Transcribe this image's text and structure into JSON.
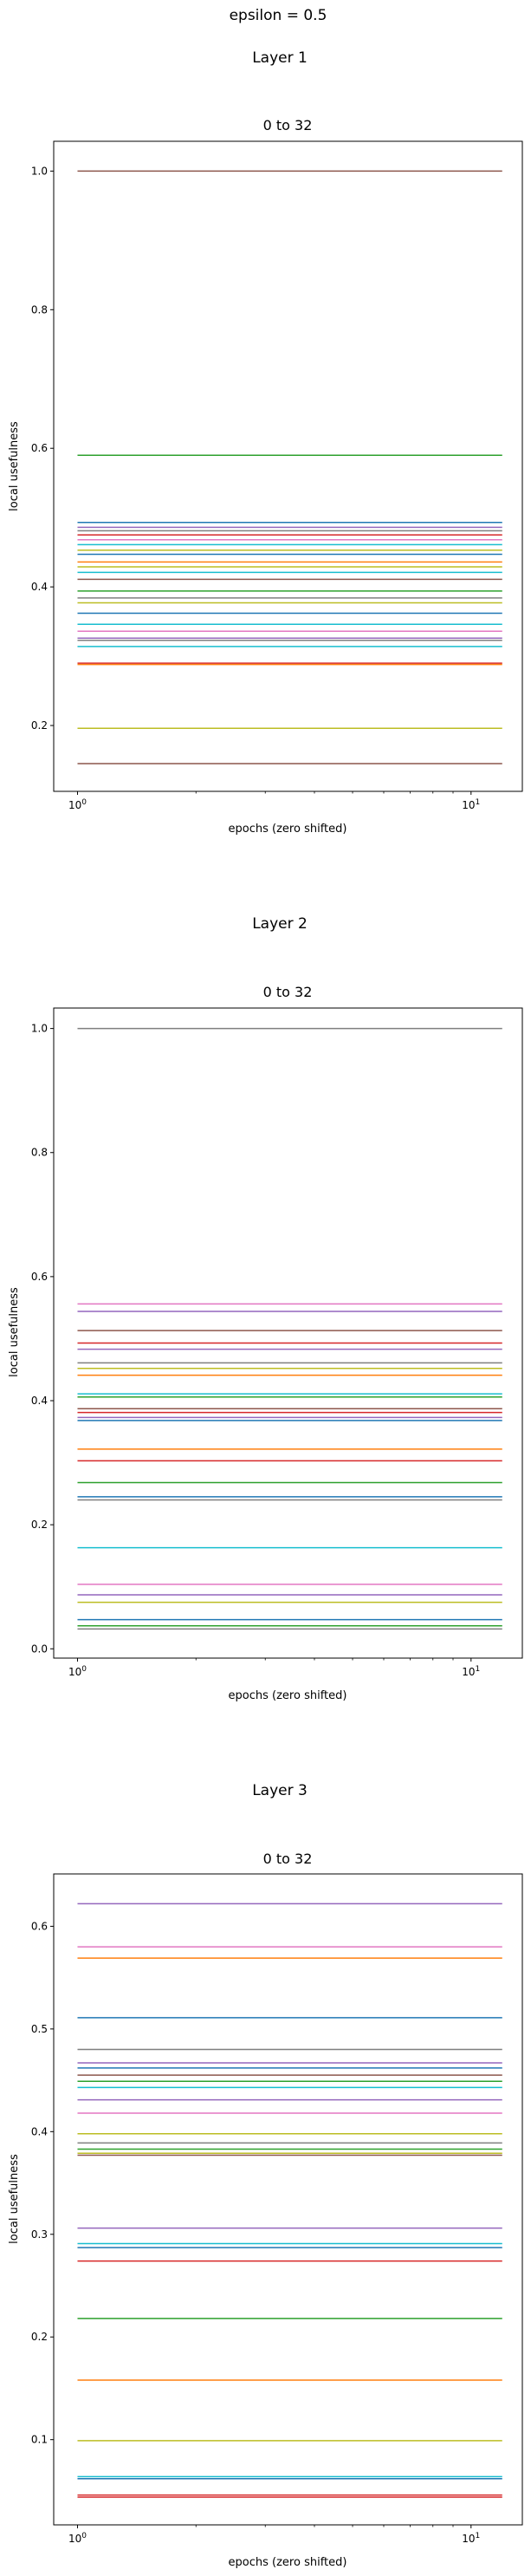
{
  "suptitle": "epsilon = 0.5",
  "chart_data": [
    {
      "type": "line",
      "layer_label": "Layer 1",
      "title": "0 to 32",
      "xlabel": "epochs (zero shifted)",
      "ylabel": "local usefulness",
      "xscale": "log",
      "xlim": [
        0.87,
        13.5
      ],
      "ylim": [
        0.105,
        1.043
      ],
      "x_ticks": [
        {
          "value": 1,
          "label": "10^0"
        },
        {
          "value": 10,
          "label": "10^1"
        }
      ],
      "y_ticks": [
        {
          "value": 0.2,
          "label": "0.2"
        },
        {
          "value": 0.4,
          "label": "0.4"
        },
        {
          "value": 0.6,
          "label": "0.6"
        },
        {
          "value": 0.8,
          "label": "0.8"
        },
        {
          "value": 1.0,
          "label": "1.0"
        }
      ],
      "x_range": [
        1,
        12
      ],
      "series": [
        {
          "color": "#8c564b",
          "values": [
            1.0,
            1.0
          ]
        },
        {
          "color": "#2ca02c",
          "values": [
            0.59,
            0.59
          ]
        },
        {
          "color": "#1f77b4",
          "values": [
            0.493,
            0.493
          ]
        },
        {
          "color": "#9467bd",
          "values": [
            0.486,
            0.486
          ]
        },
        {
          "color": "#7f7f7f",
          "values": [
            0.481,
            0.481
          ]
        },
        {
          "color": "#d62728",
          "values": [
            0.475,
            0.475
          ]
        },
        {
          "color": "#e377c2",
          "values": [
            0.468,
            0.468
          ]
        },
        {
          "color": "#17becf",
          "values": [
            0.461,
            0.461
          ]
        },
        {
          "color": "#bcbd22",
          "values": [
            0.453,
            0.453
          ]
        },
        {
          "color": "#1f77b4",
          "values": [
            0.447,
            0.447
          ]
        },
        {
          "color": "#ff7f0e",
          "values": [
            0.436,
            0.436
          ]
        },
        {
          "color": "#bcbd22",
          "values": [
            0.429,
            0.429
          ]
        },
        {
          "color": "#17becf",
          "values": [
            0.421,
            0.421
          ]
        },
        {
          "color": "#8c564b",
          "values": [
            0.411,
            0.411
          ]
        },
        {
          "color": "#2ca02c",
          "values": [
            0.394,
            0.394
          ]
        },
        {
          "color": "#7f7f7f",
          "values": [
            0.384,
            0.384
          ]
        },
        {
          "color": "#bcbd22",
          "values": [
            0.377,
            0.377
          ]
        },
        {
          "color": "#1f77b4",
          "values": [
            0.362,
            0.362
          ]
        },
        {
          "color": "#17becf",
          "values": [
            0.346,
            0.346
          ]
        },
        {
          "color": "#e377c2",
          "values": [
            0.336,
            0.336
          ]
        },
        {
          "color": "#9467bd",
          "values": [
            0.326,
            0.326
          ]
        },
        {
          "color": "#7f7f7f",
          "values": [
            0.323,
            0.323
          ]
        },
        {
          "color": "#17becf",
          "values": [
            0.314,
            0.314
          ]
        },
        {
          "color": "#d62728",
          "values": [
            0.29,
            0.29
          ]
        },
        {
          "color": "#ff7f0e",
          "values": [
            0.288,
            0.288
          ]
        },
        {
          "color": "#bcbd22",
          "values": [
            0.196,
            0.196
          ]
        },
        {
          "color": "#8c564b",
          "values": [
            0.145,
            0.145
          ]
        }
      ]
    },
    {
      "type": "line",
      "layer_label": "Layer 2",
      "title": "0 to 32",
      "xlabel": "epochs (zero shifted)",
      "ylabel": "local usefulness",
      "xscale": "log",
      "xlim": [
        0.87,
        13.5
      ],
      "ylim": [
        -0.015,
        1.033
      ],
      "x_ticks": [
        {
          "value": 1,
          "label": "10^0"
        },
        {
          "value": 10,
          "label": "10^1"
        }
      ],
      "y_ticks": [
        {
          "value": 0.0,
          "label": "0.0"
        },
        {
          "value": 0.2,
          "label": "0.2"
        },
        {
          "value": 0.4,
          "label": "0.4"
        },
        {
          "value": 0.6,
          "label": "0.6"
        },
        {
          "value": 0.8,
          "label": "0.8"
        },
        {
          "value": 1.0,
          "label": "1.0"
        }
      ],
      "x_range": [
        1,
        12
      ],
      "series": [
        {
          "color": "#7f7f7f",
          "values": [
            1.0,
            1.0
          ]
        },
        {
          "color": "#e377c2",
          "values": [
            0.556,
            0.556
          ]
        },
        {
          "color": "#9467bd",
          "values": [
            0.544,
            0.544
          ]
        },
        {
          "color": "#8c564b",
          "values": [
            0.513,
            0.513
          ]
        },
        {
          "color": "#d62728",
          "values": [
            0.493,
            0.493
          ]
        },
        {
          "color": "#9467bd",
          "values": [
            0.483,
            0.483
          ]
        },
        {
          "color": "#7f7f7f",
          "values": [
            0.461,
            0.461
          ]
        },
        {
          "color": "#bcbd22",
          "values": [
            0.452,
            0.452
          ]
        },
        {
          "color": "#ff7f0e",
          "values": [
            0.441,
            0.441
          ]
        },
        {
          "color": "#17becf",
          "values": [
            0.411,
            0.411
          ]
        },
        {
          "color": "#2ca02c",
          "values": [
            0.406,
            0.406
          ]
        },
        {
          "color": "#8c564b",
          "values": [
            0.387,
            0.387
          ]
        },
        {
          "color": "#d62728",
          "values": [
            0.381,
            0.381
          ]
        },
        {
          "color": "#9467bd",
          "values": [
            0.373,
            0.373
          ]
        },
        {
          "color": "#1f77b4",
          "values": [
            0.368,
            0.368
          ]
        },
        {
          "color": "#ff7f0e",
          "values": [
            0.322,
            0.322
          ]
        },
        {
          "color": "#d62728",
          "values": [
            0.303,
            0.303
          ]
        },
        {
          "color": "#2ca02c",
          "values": [
            0.268,
            0.268
          ]
        },
        {
          "color": "#1f77b4",
          "values": [
            0.245,
            0.245
          ]
        },
        {
          "color": "#7f7f7f",
          "values": [
            0.24,
            0.24
          ]
        },
        {
          "color": "#17becf",
          "values": [
            0.163,
            0.163
          ]
        },
        {
          "color": "#e377c2",
          "values": [
            0.104,
            0.104
          ]
        },
        {
          "color": "#9467bd",
          "values": [
            0.087,
            0.087
          ]
        },
        {
          "color": "#bcbd22",
          "values": [
            0.075,
            0.075
          ]
        },
        {
          "color": "#1f77b4",
          "values": [
            0.047,
            0.047
          ]
        },
        {
          "color": "#2ca02c",
          "values": [
            0.037,
            0.037
          ]
        },
        {
          "color": "#7f7f7f",
          "values": [
            0.032,
            0.032
          ]
        }
      ]
    },
    {
      "type": "line",
      "layer_label": "Layer 3",
      "title": "0 to 32",
      "xlabel": "epochs (zero shifted)",
      "ylabel": "local usefulness",
      "xscale": "log",
      "xlim": [
        0.87,
        13.5
      ],
      "ylim": [
        0.017,
        0.651
      ],
      "x_ticks": [
        {
          "value": 1,
          "label": "10^0"
        },
        {
          "value": 10,
          "label": "10^1"
        }
      ],
      "y_ticks": [
        {
          "value": 0.1,
          "label": "0.1"
        },
        {
          "value": 0.2,
          "label": "0.2"
        },
        {
          "value": 0.3,
          "label": "0.3"
        },
        {
          "value": 0.4,
          "label": "0.4"
        },
        {
          "value": 0.5,
          "label": "0.5"
        },
        {
          "value": 0.6,
          "label": "0.6"
        }
      ],
      "x_range": [
        1,
        12
      ],
      "series": [
        {
          "color": "#9467bd",
          "values": [
            0.622,
            0.622
          ]
        },
        {
          "color": "#e377c2",
          "values": [
            0.58,
            0.58
          ]
        },
        {
          "color": "#ff7f0e",
          "values": [
            0.569,
            0.569
          ]
        },
        {
          "color": "#1f77b4",
          "values": [
            0.511,
            0.511
          ]
        },
        {
          "color": "#7f7f7f",
          "values": [
            0.48,
            0.48
          ]
        },
        {
          "color": "#9467bd",
          "values": [
            0.467,
            0.467
          ]
        },
        {
          "color": "#1f77b4",
          "values": [
            0.462,
            0.462
          ]
        },
        {
          "color": "#8c564b",
          "values": [
            0.455,
            0.455
          ]
        },
        {
          "color": "#2ca02c",
          "values": [
            0.449,
            0.449
          ]
        },
        {
          "color": "#17becf",
          "values": [
            0.443,
            0.443
          ]
        },
        {
          "color": "#9467bd",
          "values": [
            0.431,
            0.431
          ]
        },
        {
          "color": "#e377c2",
          "values": [
            0.418,
            0.418
          ]
        },
        {
          "color": "#bcbd22",
          "values": [
            0.398,
            0.398
          ]
        },
        {
          "color": "#7f7f7f",
          "values": [
            0.389,
            0.389
          ]
        },
        {
          "color": "#2ca02c",
          "values": [
            0.383,
            0.383
          ]
        },
        {
          "color": "#bcbd22",
          "values": [
            0.379,
            0.379
          ]
        },
        {
          "color": "#8c564b",
          "values": [
            0.377,
            0.377
          ]
        },
        {
          "color": "#9467bd",
          "values": [
            0.306,
            0.306
          ]
        },
        {
          "color": "#17becf",
          "values": [
            0.291,
            0.291
          ]
        },
        {
          "color": "#1f77b4",
          "values": [
            0.287,
            0.287
          ]
        },
        {
          "color": "#d62728",
          "values": [
            0.274,
            0.274
          ]
        },
        {
          "color": "#2ca02c",
          "values": [
            0.218,
            0.218
          ]
        },
        {
          "color": "#ff7f0e",
          "values": [
            0.158,
            0.158
          ]
        },
        {
          "color": "#bcbd22",
          "values": [
            0.099,
            0.099
          ]
        },
        {
          "color": "#17becf",
          "values": [
            0.064,
            0.064
          ]
        },
        {
          "color": "#1f77b4",
          "values": [
            0.062,
            0.062
          ]
        },
        {
          "color": "#d62728",
          "values": [
            0.046,
            0.046
          ]
        },
        {
          "color": "#d62728",
          "values": [
            0.044,
            0.044
          ]
        }
      ]
    }
  ]
}
